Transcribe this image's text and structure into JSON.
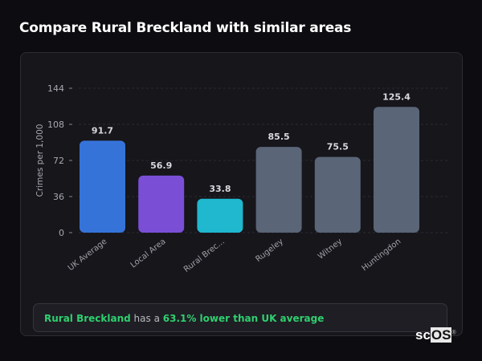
{
  "title": "Compare Rural Breckland with similar areas",
  "chart_data": {
    "type": "bar",
    "ylabel": "Crimes per 1,000",
    "ylim": [
      0,
      144
    ],
    "yticks": [
      0,
      36,
      72,
      108,
      144
    ],
    "grid": true,
    "categories": [
      "UK Average",
      "Local Area",
      "Rural Brec...",
      "Rugeley",
      "Witney",
      "Huntingdon"
    ],
    "values": [
      91.7,
      56.9,
      33.8,
      85.5,
      75.5,
      125.4
    ],
    "value_labels": [
      "91.7",
      "56.9",
      "33.8",
      "85.5",
      "75.5",
      "125.4"
    ],
    "colors": [
      "#3673d9",
      "#7a4fd6",
      "#1fb8cf",
      "#5a6577",
      "#5a6577",
      "#5a6577"
    ]
  },
  "summary": {
    "area": "Rural Breckland",
    "middle": " has a ",
    "highlight": "63.1% lower than UK average"
  },
  "logo": {
    "prefix": "sc",
    "suffix": "OS",
    "mark": "®"
  }
}
